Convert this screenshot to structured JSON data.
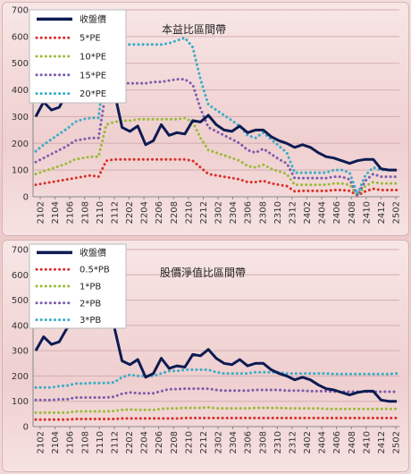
{
  "chart_data": [
    {
      "type": "line",
      "title": "本益比區間帶",
      "ylim": [
        0,
        700
      ],
      "yticks": [
        0,
        100,
        200,
        300,
        400,
        500,
        600,
        700
      ],
      "x_tick_labels": [
        "2102",
        "2104",
        "2106",
        "2108",
        "2110",
        "2112",
        "2202",
        "2204",
        "2206",
        "2208",
        "2210",
        "2212",
        "2302",
        "2304",
        "2306",
        "2308",
        "2310",
        "2312",
        "2402",
        "2404",
        "2406",
        "2408",
        "2410",
        "2412",
        "2502"
      ],
      "legend_position": "top-left",
      "series": [
        {
          "name": "收盤價",
          "color": "#0d1b52",
          "style": "solid",
          "values": [
            300,
            355,
            325,
            335,
            390,
            400,
            420,
            510,
            520,
            405,
            395,
            260,
            245,
            265,
            195,
            210,
            270,
            230,
            240,
            235,
            285,
            280,
            305,
            270,
            250,
            245,
            265,
            240,
            250,
            250,
            225,
            210,
            200,
            185,
            195,
            185,
            165,
            150,
            145,
            135,
            125,
            135,
            140,
            140,
            105,
            100,
            100
          ]
        },
        {
          "name": "5*PE",
          "color": "#d9302c",
          "style": "dotted",
          "values": [
            45,
            50,
            55,
            60,
            65,
            70,
            75,
            80,
            75,
            135,
            140,
            140,
            140,
            140,
            140,
            140,
            140,
            140,
            140,
            140,
            135,
            110,
            85,
            80,
            75,
            70,
            65,
            55,
            55,
            60,
            50,
            45,
            40,
            20,
            22,
            22,
            22,
            22,
            25,
            25,
            22,
            5,
            20,
            30,
            25,
            25,
            25
          ]
        },
        {
          "name": "10*PE",
          "color": "#9bbb39",
          "style": "dotted",
          "values": [
            85,
            95,
            105,
            115,
            125,
            140,
            145,
            150,
            150,
            270,
            280,
            285,
            285,
            290,
            290,
            290,
            290,
            290,
            290,
            295,
            280,
            220,
            175,
            165,
            155,
            145,
            135,
            115,
            110,
            120,
            105,
            95,
            85,
            45,
            45,
            45,
            45,
            45,
            50,
            50,
            45,
            5,
            40,
            55,
            50,
            50,
            50
          ]
        },
        {
          "name": "15*PE",
          "color": "#7d5cac",
          "style": "dotted",
          "values": [
            130,
            145,
            160,
            175,
            190,
            210,
            215,
            220,
            220,
            405,
            420,
            425,
            425,
            425,
            425,
            430,
            430,
            435,
            440,
            440,
            420,
            330,
            260,
            245,
            230,
            215,
            200,
            175,
            165,
            180,
            160,
            140,
            125,
            70,
            70,
            70,
            70,
            70,
            75,
            75,
            65,
            5,
            60,
            85,
            75,
            75,
            75
          ]
        },
        {
          "name": "20*PE",
          "color": "#3aacc7",
          "style": "dotted",
          "values": [
            170,
            195,
            215,
            235,
            255,
            280,
            290,
            295,
            295,
            540,
            560,
            570,
            570,
            570,
            570,
            570,
            570,
            575,
            585,
            595,
            560,
            440,
            345,
            325,
            305,
            285,
            265,
            230,
            220,
            240,
            215,
            190,
            165,
            90,
            90,
            90,
            90,
            90,
            100,
            100,
            90,
            10,
            80,
            110,
            100,
            100,
            100
          ]
        }
      ]
    },
    {
      "type": "line",
      "title": "股價淨值比區間帶",
      "ylim": [
        0,
        700
      ],
      "yticks": [
        0,
        100,
        200,
        300,
        400,
        500,
        600,
        700
      ],
      "x_tick_labels": [
        "2102",
        "2104",
        "2106",
        "2108",
        "2110",
        "2112",
        "2202",
        "2204",
        "2206",
        "2208",
        "2210",
        "2212",
        "2302",
        "2304",
        "2306",
        "2308",
        "2310",
        "2312",
        "2402",
        "2404",
        "2406",
        "2408",
        "2410",
        "2412",
        "2502"
      ],
      "legend_position": "top-left",
      "series": [
        {
          "name": "收盤價",
          "color": "#0d1b52",
          "style": "solid",
          "values": [
            300,
            355,
            325,
            335,
            390,
            400,
            420,
            510,
            520,
            405,
            395,
            260,
            245,
            265,
            195,
            210,
            270,
            230,
            240,
            235,
            285,
            280,
            305,
            270,
            250,
            245,
            265,
            240,
            250,
            250,
            225,
            210,
            200,
            185,
            195,
            185,
            165,
            150,
            145,
            135,
            125,
            135,
            140,
            140,
            105,
            100,
            100
          ]
        },
        {
          "name": "0.5*PB",
          "color": "#d9302c",
          "style": "dotted",
          "values": [
            28,
            28,
            28,
            28,
            28,
            30,
            30,
            30,
            30,
            30,
            30,
            32,
            32,
            32,
            32,
            32,
            32,
            32,
            32,
            34,
            34,
            34,
            34,
            34,
            34,
            34,
            34,
            34,
            34,
            34,
            34,
            34,
            34,
            34,
            34,
            34,
            34,
            34,
            34,
            34,
            34,
            34,
            34,
            34,
            34,
            34,
            34
          ]
        },
        {
          "name": "1*PB",
          "color": "#9bbb39",
          "style": "dotted",
          "values": [
            55,
            55,
            55,
            55,
            55,
            60,
            60,
            60,
            60,
            60,
            62,
            66,
            68,
            66,
            66,
            66,
            70,
            72,
            72,
            74,
            74,
            74,
            76,
            72,
            72,
            72,
            72,
            72,
            74,
            74,
            74,
            74,
            72,
            72,
            72,
            72,
            72,
            70,
            70,
            70,
            70,
            70,
            70,
            70,
            70,
            70,
            70
          ]
        },
        {
          "name": "2*PB",
          "color": "#7d5cac",
          "style": "dotted",
          "values": [
            105,
            105,
            105,
            108,
            108,
            115,
            115,
            115,
            115,
            115,
            118,
            130,
            135,
            132,
            132,
            132,
            140,
            148,
            148,
            150,
            150,
            150,
            150,
            145,
            142,
            142,
            142,
            142,
            145,
            145,
            145,
            145,
            142,
            142,
            142,
            140,
            140,
            140,
            138,
            138,
            138,
            138,
            138,
            138,
            138,
            138,
            138
          ]
        },
        {
          "name": "3*PB",
          "color": "#3aacc7",
          "style": "dotted",
          "values": [
            155,
            155,
            155,
            160,
            162,
            170,
            170,
            172,
            172,
            172,
            175,
            195,
            205,
            200,
            200,
            200,
            210,
            220,
            220,
            225,
            225,
            225,
            225,
            215,
            210,
            210,
            210,
            210,
            215,
            215,
            215,
            215,
            210,
            210,
            210,
            210,
            210,
            210,
            208,
            208,
            208,
            208,
            208,
            208,
            208,
            208,
            210
          ]
        }
      ]
    }
  ]
}
